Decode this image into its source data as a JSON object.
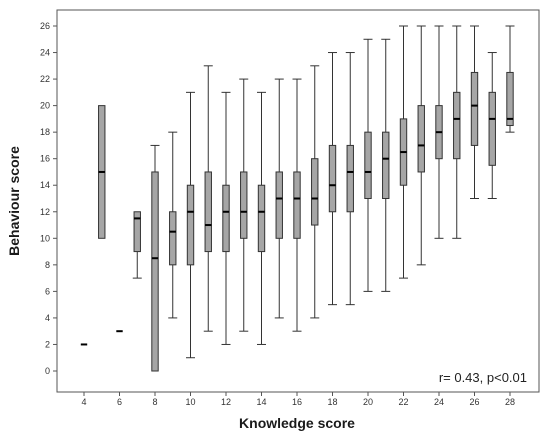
{
  "chart_data": {
    "type": "box",
    "xlabel": "Knowledge score",
    "ylabel": "Behaviour score",
    "ylim": [
      0,
      26
    ],
    "xlim": [
      3,
      29
    ],
    "grid": false,
    "yticks": [
      0,
      2,
      4,
      6,
      8,
      10,
      12,
      14,
      16,
      18,
      20,
      22,
      24,
      26
    ],
    "xticks": [
      4,
      6,
      8,
      10,
      12,
      14,
      16,
      18,
      20,
      22,
      24,
      26,
      28
    ],
    "annotation": "r= 0.43, p<0.01",
    "colors": {
      "box_fill": "#a6a6a6",
      "stroke": "#333333",
      "median": "#000000"
    },
    "boxes": [
      {
        "x": 4,
        "min": 2,
        "q1": 2,
        "median": 2,
        "q3": 2,
        "max": 2
      },
      {
        "x": 5,
        "min": 10,
        "q1": 10,
        "median": 15,
        "q3": 20,
        "max": 20
      },
      {
        "x": 6,
        "min": 3,
        "q1": 3,
        "median": 3,
        "q3": 3,
        "max": 3
      },
      {
        "x": 7,
        "min": 7,
        "q1": 9,
        "median": 11.5,
        "q3": 12,
        "max": 12
      },
      {
        "x": 8,
        "min": 0,
        "q1": 0,
        "median": 8.5,
        "q3": 15,
        "max": 17
      },
      {
        "x": 9,
        "min": 4,
        "q1": 8,
        "median": 10.5,
        "q3": 12,
        "max": 18
      },
      {
        "x": 10,
        "min": 1,
        "q1": 8,
        "median": 12,
        "q3": 14,
        "max": 21
      },
      {
        "x": 11,
        "min": 3,
        "q1": 9,
        "median": 11,
        "q3": 15,
        "max": 23
      },
      {
        "x": 12,
        "min": 2,
        "q1": 9,
        "median": 12,
        "q3": 14,
        "max": 21
      },
      {
        "x": 13,
        "min": 3,
        "q1": 10,
        "median": 12,
        "q3": 15,
        "max": 22
      },
      {
        "x": 14,
        "min": 2,
        "q1": 9,
        "median": 12,
        "q3": 14,
        "max": 21
      },
      {
        "x": 15,
        "min": 4,
        "q1": 10,
        "median": 13,
        "q3": 15,
        "max": 22
      },
      {
        "x": 16,
        "min": 3,
        "q1": 10,
        "median": 13,
        "q3": 15,
        "max": 22
      },
      {
        "x": 17,
        "min": 4,
        "q1": 11,
        "median": 13,
        "q3": 16,
        "max": 23
      },
      {
        "x": 18,
        "min": 5,
        "q1": 12,
        "median": 14,
        "q3": 17,
        "max": 24
      },
      {
        "x": 19,
        "min": 5,
        "q1": 12,
        "median": 15,
        "q3": 17,
        "max": 24
      },
      {
        "x": 20,
        "min": 6,
        "q1": 13,
        "median": 15,
        "q3": 18,
        "max": 25
      },
      {
        "x": 21,
        "min": 6,
        "q1": 13,
        "median": 16,
        "q3": 18,
        "max": 25
      },
      {
        "x": 22,
        "min": 7,
        "q1": 14,
        "median": 16.5,
        "q3": 19,
        "max": 26
      },
      {
        "x": 23,
        "min": 8,
        "q1": 15,
        "median": 17,
        "q3": 20,
        "max": 26
      },
      {
        "x": 24,
        "min": 10,
        "q1": 16,
        "median": 18,
        "q3": 20,
        "max": 26
      },
      {
        "x": 25,
        "min": 10,
        "q1": 16,
        "median": 19,
        "q3": 21,
        "max": 26
      },
      {
        "x": 26,
        "min": 13,
        "q1": 17,
        "median": 20,
        "q3": 22.5,
        "max": 26
      },
      {
        "x": 27,
        "min": 13,
        "q1": 15.5,
        "median": 19,
        "q3": 21,
        "max": 24
      },
      {
        "x": 28,
        "min": 18,
        "q1": 18.5,
        "median": 19,
        "q3": 22.5,
        "max": 26
      }
    ]
  }
}
